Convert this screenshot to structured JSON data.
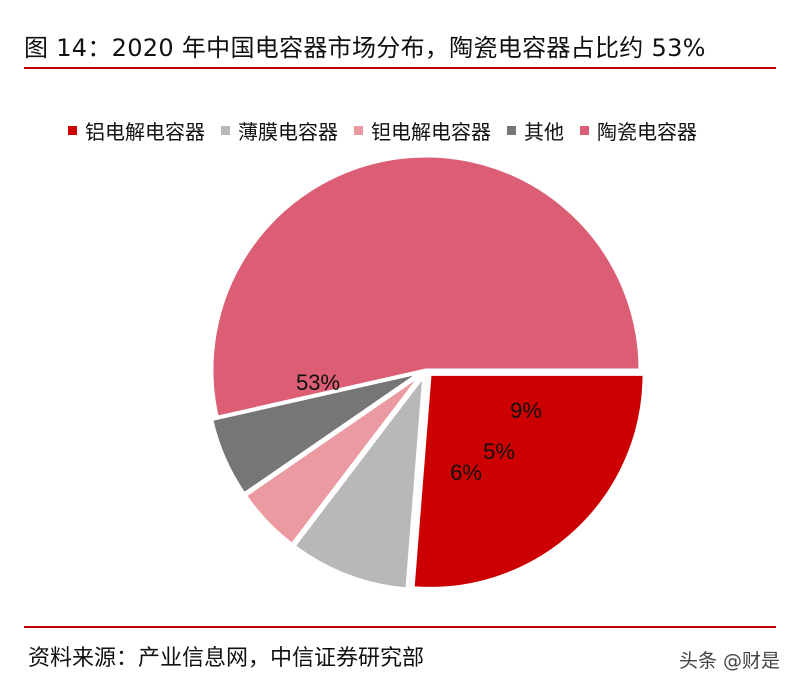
{
  "header": {
    "title": "图 14：2020 年中国电容器市场分布，陶瓷电容器占比约 53%"
  },
  "chart_data": {
    "type": "pie",
    "title": "图 14：2020 年中国电容器市场分布，陶瓷电容器占比约 53%",
    "legend_position": "top",
    "start_angle_deg": 0,
    "direction": "clockwise",
    "slices": [
      {
        "label": "铝电解电容器",
        "value": 26,
        "value_label": "26%",
        "color": "#cc0000"
      },
      {
        "label": "薄膜电容器",
        "value": 9,
        "value_label": "9%",
        "color": "#b8b8b8"
      },
      {
        "label": "钽电解电容器",
        "value": 5,
        "value_label": "5%",
        "color": "#ec9aa2"
      },
      {
        "label": "其他",
        "value": 6,
        "value_label": "6%",
        "color": "#767676"
      },
      {
        "label": "陶瓷电容器",
        "value": 53,
        "value_label": "53%",
        "color": "#dc5e74"
      }
    ]
  },
  "footer": {
    "source": "资料来源：产业信息网，中信证券研究部",
    "watermark": "头条 @财是"
  }
}
